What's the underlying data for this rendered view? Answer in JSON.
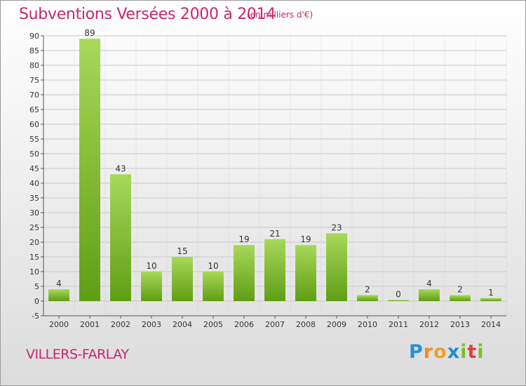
{
  "header": {
    "title": "Subventions Versées 2000 à 2014",
    "subtitle": "(en milliers d'€)"
  },
  "commune": "VILLERS-FARLAY",
  "logo": {
    "text": "Proxiti",
    "letters": [
      {
        "char": "P",
        "color": "#2c8fd6"
      },
      {
        "char": "r",
        "color": "#f08a1c"
      },
      {
        "char": "o",
        "color": "#e8a32a"
      },
      {
        "char": "x",
        "color": "#1e8ccf"
      },
      {
        "char": "i",
        "color": "#7cbf2a"
      },
      {
        "char": "t",
        "color": "#e43d3d"
      },
      {
        "char": "i",
        "color": "#7cbf2a"
      }
    ]
  },
  "colors": {
    "title": "#c8266c",
    "bar_light": "#a8d85a",
    "bar_dark": "#5f9e13",
    "grid": "#c8c8c8"
  },
  "chart_data": {
    "type": "bar",
    "categories": [
      "2000",
      "2001",
      "2002",
      "2003",
      "2004",
      "2005",
      "2006",
      "2007",
      "2008",
      "2009",
      "2010",
      "2011",
      "2012",
      "2013",
      "2014"
    ],
    "values": [
      4,
      89,
      43,
      10,
      15,
      10,
      19,
      21,
      19,
      23,
      2,
      0,
      4,
      2,
      1
    ],
    "title": "Subventions Versées 2000 à 2014",
    "subtitle": "(en milliers d'€)",
    "ylim": [
      -5,
      90
    ],
    "yticks": [
      -5,
      0,
      5,
      10,
      15,
      20,
      25,
      30,
      35,
      40,
      45,
      50,
      55,
      60,
      65,
      70,
      75,
      80,
      85,
      90
    ],
    "grid": true,
    "data_labels": true
  }
}
